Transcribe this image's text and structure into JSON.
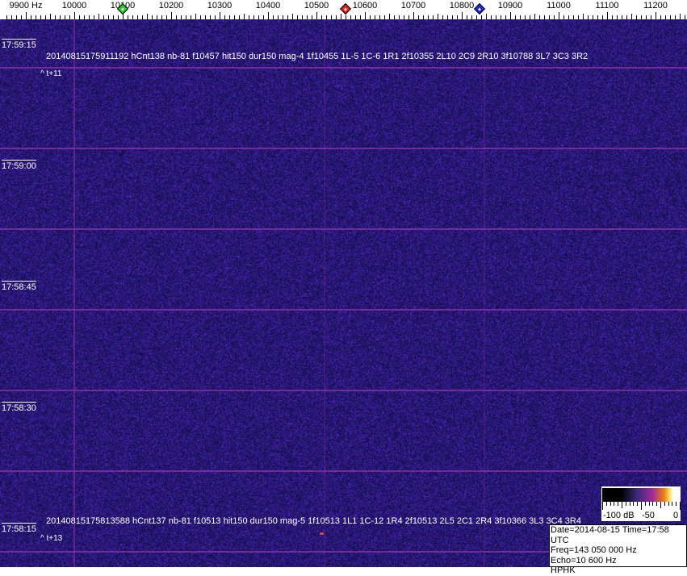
{
  "frequency_axis": {
    "unit": "Hz",
    "labels": [
      "9900 Hz",
      "10000",
      "10100",
      "10200",
      "10300",
      "10400",
      "10500",
      "10600",
      "10700",
      "10800",
      "10900",
      "11000",
      "11100",
      "11200"
    ],
    "label_values": [
      9900,
      10000,
      10100,
      10200,
      10300,
      10400,
      10500,
      10600,
      10700,
      10800,
      10900,
      11000,
      11100,
      11200
    ],
    "markers": [
      {
        "name": "green-marker",
        "freq": 10100,
        "color": "#22cc22"
      },
      {
        "name": "red-marker",
        "freq": 10560,
        "color": "#dd2222"
      },
      {
        "name": "blue-marker",
        "freq": 10837,
        "color": "#1a2acc"
      }
    ]
  },
  "colors": {
    "background": "#211c78",
    "gridline": "#9632aa"
  },
  "time_labels": [
    "17:59:15",
    "17:59:00",
    "17:58:45",
    "17:58:30",
    "17:58:15"
  ],
  "detections": [
    {
      "text": "20140815175911192 hCnt138 nb-81 f10457 hit150 dur150 mag-4 1f10455 1L-5 1C-6 1R1 2f10355 2L10 2C9 2R10 3f10788 3L7 3C3 3R2",
      "offset": "^ t+11"
    },
    {
      "text": "20140815175813588 hCnt137 nb-81 f10513 hit150 dur150 mag-5 1f10513 1L1 1C-12 1R4 2f10513 2L5 2C1 2R4 3f10366 3L3 3C4 3R4",
      "offset": "^ t+13"
    }
  ],
  "color_scale": {
    "labels": [
      "-100 dB",
      "-50",
      "0"
    ]
  },
  "info": {
    "line1": "Date=2014-08-15 Time=17:58 UTC",
    "line2": "Freq=143 050 000 Hz",
    "line3": "Echo=10 600 Hz",
    "line4": "HPHK"
  }
}
